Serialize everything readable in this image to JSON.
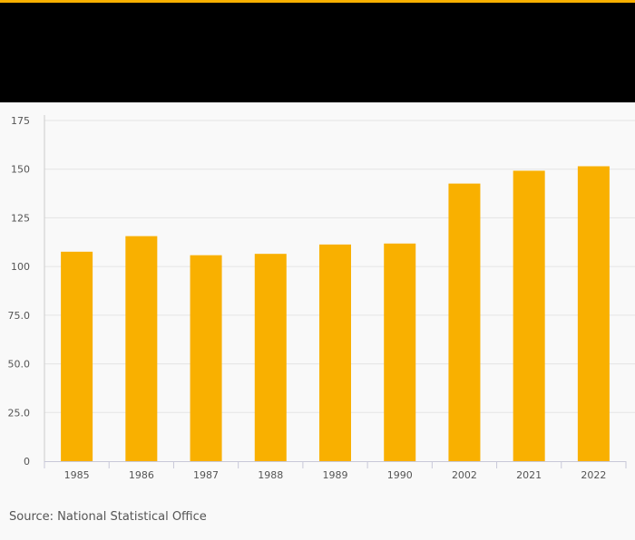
{
  "colors": {
    "accent": "#f9b000",
    "bar": "#f9b000",
    "header": "#000000",
    "background": "#f9f9f9",
    "grid": "#e4e4e4",
    "text": "#555555"
  },
  "source_text": "Source: National Statistical Office",
  "chart_data": {
    "type": "bar",
    "title": "",
    "xlabel": "",
    "ylabel": "",
    "categories": [
      "1985",
      "1986",
      "1987",
      "1988",
      "1989",
      "1990",
      "2002",
      "2021",
      "2022"
    ],
    "values": [
      107.6,
      115.6,
      105.8,
      106.5,
      111.3,
      111.8,
      142.6,
      149.2,
      151.5
    ],
    "ylim": [
      0,
      175
    ],
    "yticks": [
      "0",
      "25.0",
      "50.0",
      "75.0",
      "100",
      "125",
      "150",
      "175"
    ],
    "ytick_values": [
      0,
      25,
      50,
      75,
      100,
      125,
      150,
      175
    ],
    "grid": true
  }
}
